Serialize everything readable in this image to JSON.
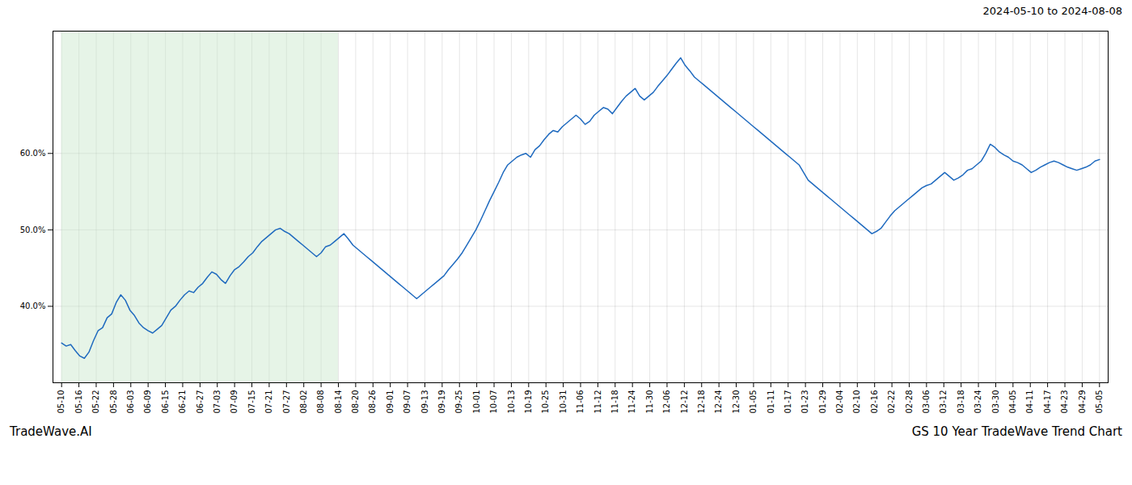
{
  "chart_data": {
    "type": "line",
    "title": "2024-05-10 to 2024-08-08",
    "annotations": [
      "TradeWave.AI",
      "GS 10 Year TradeWave Trend Chart"
    ],
    "color": "#1f6abf",
    "grid": true,
    "ylim": [
      30,
      76
    ],
    "yticks": [
      {
        "value": 40.0,
        "label": "40.0%"
      },
      {
        "value": 50.0,
        "label": "50.0%"
      },
      {
        "value": 60.0,
        "label": "60.0%"
      }
    ],
    "shaded_span": {
      "from": "05-10",
      "to": "08-14",
      "color": "#c8e6c9"
    },
    "xtick_labels": [
      "05-10",
      "05-16",
      "05-22",
      "05-28",
      "06-03",
      "06-09",
      "06-15",
      "06-21",
      "06-27",
      "07-03",
      "07-09",
      "07-15",
      "07-21",
      "07-27",
      "08-02",
      "08-08",
      "08-14",
      "08-20",
      "08-26",
      "09-01",
      "09-07",
      "09-13",
      "09-19",
      "09-25",
      "10-01",
      "10-07",
      "10-13",
      "10-19",
      "10-25",
      "10-31",
      "11-06",
      "11-12",
      "11-18",
      "11-24",
      "11-30",
      "12-06",
      "12-12",
      "12-18",
      "12-24",
      "12-30",
      "01-05",
      "01-11",
      "01-17",
      "01-23",
      "01-29",
      "02-04",
      "02-10",
      "02-16",
      "02-22",
      "02-28",
      "03-06",
      "03-12",
      "03-18",
      "03-24",
      "03-30",
      "04-05",
      "04-11",
      "04-17",
      "04-23",
      "04-29",
      "05-05"
    ],
    "values": [
      35.2,
      34.8,
      35.0,
      34.2,
      33.5,
      33.2,
      34.0,
      35.5,
      36.8,
      37.2,
      38.5,
      39.0,
      40.5,
      41.5,
      40.8,
      39.5,
      38.8,
      37.8,
      37.2,
      36.8,
      36.5,
      37.0,
      37.5,
      38.5,
      39.5,
      40.0,
      40.8,
      41.5,
      42.0,
      41.8,
      42.5,
      43.0,
      43.8,
      44.5,
      44.2,
      43.5,
      43.0,
      44.0,
      44.8,
      45.2,
      45.8,
      46.5,
      47.0,
      47.8,
      48.5,
      49.0,
      49.5,
      50.0,
      50.2,
      49.8,
      49.5,
      49.0,
      48.5,
      48.0,
      47.5,
      47.0,
      46.5,
      47.0,
      47.8,
      48.0,
      48.5,
      49.0,
      49.5,
      48.8,
      48.0,
      47.5,
      47.0,
      46.5,
      46.0,
      45.5,
      45.0,
      44.5,
      44.0,
      43.5,
      43.0,
      42.5,
      42.0,
      41.5,
      41.0,
      41.5,
      42.0,
      42.5,
      43.0,
      43.5,
      44.0,
      44.8,
      45.5,
      46.2,
      47.0,
      48.0,
      49.0,
      50.0,
      51.2,
      52.5,
      53.8,
      55.0,
      56.2,
      57.5,
      58.5,
      59.0,
      59.5,
      59.8,
      60.0,
      59.5,
      60.5,
      61.0,
      61.8,
      62.5,
      63.0,
      62.8,
      63.5,
      64.0,
      64.5,
      65.0,
      64.5,
      63.8,
      64.2,
      65.0,
      65.5,
      66.0,
      65.8,
      65.2,
      66.0,
      66.8,
      67.5,
      68.0,
      68.5,
      67.5,
      67.0,
      67.5,
      68.0,
      68.8,
      69.5,
      70.2,
      71.0,
      71.8,
      72.5,
      71.5,
      70.8,
      70.0,
      69.5,
      69.0,
      68.5,
      68.0,
      67.5,
      67.0,
      66.5,
      66.0,
      65.5,
      65.0,
      64.5,
      64.0,
      63.5,
      63.0,
      62.5,
      62.0,
      61.5,
      61.0,
      60.5,
      60.0,
      59.5,
      59.0,
      58.5,
      57.5,
      56.5,
      56.0,
      55.5,
      55.0,
      54.5,
      54.0,
      53.5,
      53.0,
      52.5,
      52.0,
      51.5,
      51.0,
      50.5,
      50.0,
      49.5,
      49.8,
      50.2,
      51.0,
      51.8,
      52.5,
      53.0,
      53.5,
      54.0,
      54.5,
      55.0,
      55.5,
      55.8,
      56.0,
      56.5,
      57.0,
      57.5,
      57.0,
      56.5,
      56.8,
      57.2,
      57.8,
      58.0,
      58.5,
      59.0,
      60.0,
      61.2,
      60.8,
      60.2,
      59.8,
      59.5,
      59.0,
      58.8,
      58.5,
      58.0,
      57.5,
      57.8,
      58.2,
      58.5,
      58.8,
      59.0,
      58.8,
      58.5,
      58.2,
      58.0,
      57.8,
      58.0,
      58.2,
      58.5,
      59.0,
      59.2
    ]
  }
}
